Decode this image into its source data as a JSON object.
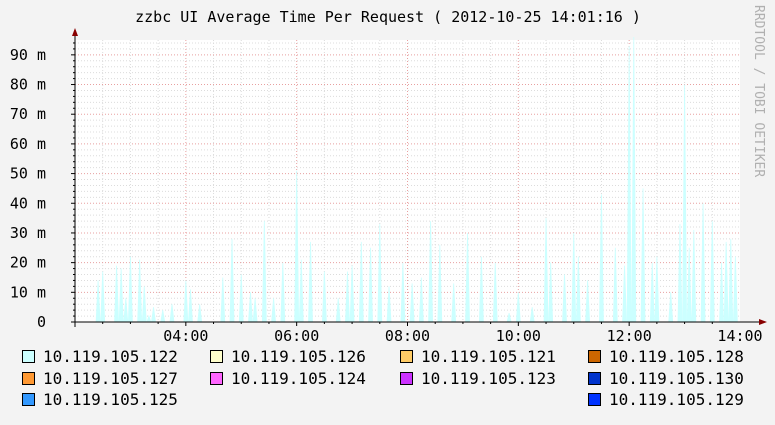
{
  "chart_data": {
    "type": "area",
    "title": "zzbc UI Average Time Per Request ( 2012-10-25 14:01:16 )",
    "watermark": "RRDTOOL / TOBI OETIKER",
    "x_ticks": [
      "04:00",
      "06:00",
      "08:00",
      "10:00",
      "12:00",
      "14:00"
    ],
    "x_range": [
      "02:00",
      "14:00"
    ],
    "y_ticks": [
      "0",
      "10 m",
      "20 m",
      "30 m",
      "40 m",
      "50 m",
      "60 m",
      "70 m",
      "80 m",
      "90 m"
    ],
    "y_range": [
      0,
      95
    ],
    "y_unit": "m",
    "grid": true,
    "series": [
      {
        "name": "10.119.105.122",
        "color": "#ccffff",
        "x": [
          "02:25",
          "02:30",
          "02:45",
          "02:50",
          "02:55",
          "03:00",
          "03:10",
          "03:15",
          "03:20",
          "03:25",
          "03:35",
          "03:45",
          "04:00",
          "04:05",
          "04:15",
          "04:40",
          "04:50",
          "05:00",
          "05:10",
          "05:15",
          "05:25",
          "05:35",
          "05:45",
          "06:00",
          "06:05",
          "06:15",
          "06:30",
          "06:45",
          "06:55",
          "07:00",
          "07:10",
          "07:20",
          "07:30",
          "07:40",
          "07:55",
          "08:05",
          "08:15",
          "08:25",
          "08:35",
          "08:50",
          "09:05",
          "09:20",
          "09:35",
          "09:50",
          "10:00",
          "10:15",
          "10:30",
          "10:35",
          "10:50",
          "11:00",
          "11:05",
          "11:15",
          "11:30",
          "11:45",
          "11:55",
          "12:00",
          "12:05",
          "12:15",
          "12:25",
          "12:30",
          "12:45",
          "12:55",
          "13:00",
          "13:05",
          "13:10",
          "13:20",
          "13:30",
          "13:40",
          "13:45",
          "13:50",
          "13:55"
        ],
        "values": [
          14,
          17,
          19,
          18,
          8,
          22,
          21,
          12,
          2,
          5,
          4,
          6,
          14,
          11,
          6,
          15,
          28,
          16,
          10,
          8,
          34,
          8,
          20,
          51,
          21,
          27,
          17,
          8,
          17,
          19,
          27,
          25,
          33,
          12,
          20,
          13,
          15,
          34,
          26,
          13,
          30,
          22,
          20,
          3,
          10,
          5,
          35,
          20,
          16,
          30,
          22,
          14,
          43,
          25,
          19,
          93,
          96,
          45,
          20,
          22,
          10,
          33,
          80,
          25,
          31,
          40,
          34,
          20,
          27,
          28,
          22
        ]
      },
      {
        "name": "10.119.105.126",
        "color": "#ffffcc"
      },
      {
        "name": "10.119.105.121",
        "color": "#ffcc66"
      },
      {
        "name": "10.119.105.128",
        "color": "#cc6600"
      },
      {
        "name": "10.119.105.127",
        "color": "#ff9933"
      },
      {
        "name": "10.119.105.124",
        "color": "#ff66ff"
      },
      {
        "name": "10.119.105.123",
        "color": "#cc33ff"
      },
      {
        "name": "10.119.105.130",
        "color": "#0033cc"
      },
      {
        "name": "10.119.105.125",
        "color": "#3399ff"
      },
      {
        "name": "10.119.105.129",
        "color": "#0033ff"
      }
    ]
  },
  "colors": {
    "background": "#f3f3f3",
    "canvas": "#ffffff",
    "grid_minor": "#dcdcdc",
    "grid_major": "#e8a0a0",
    "axis": "#000000",
    "arrow": "#880000",
    "watermark": "#b0b0b0"
  },
  "legend_layout": [
    [
      "10.119.105.122",
      "10.119.105.126",
      "10.119.105.121",
      "10.119.105.128"
    ],
    [
      "10.119.105.127",
      "10.119.105.124",
      "10.119.105.123",
      "10.119.105.130"
    ],
    [
      "10.119.105.125",
      "",
      "",
      "10.119.105.129"
    ]
  ]
}
